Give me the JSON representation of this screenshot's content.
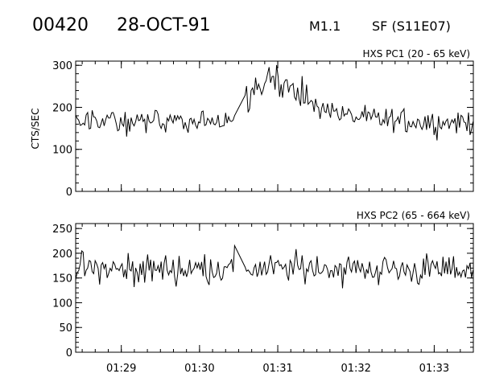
{
  "header": {
    "id": "00420",
    "date": "28-OCT-91",
    "class": "M1.1",
    "location": "SF (S11E07)"
  },
  "chart_data": [
    {
      "type": "line",
      "title": "HXS PC1 (20 - 65 keV)",
      "ylabel": "CTS/SEC",
      "ylim": [
        0,
        310
      ],
      "yticks": [
        0,
        100,
        200,
        300
      ],
      "xlim": [
        "01:28:25",
        "01:33:30"
      ],
      "xticks": [
        "01:29",
        "01:30",
        "01:31",
        "01:32",
        "01:33"
      ],
      "data_gap": [
        "01:30:28",
        "01:30:34"
      ],
      "series": [
        {
          "x": [
            "01:28:25",
            "01:28:40",
            "01:29:00",
            "01:29:20",
            "01:29:40",
            "01:30:00",
            "01:30:20",
            "01:30:28",
            "01:30:34",
            "01:30:40",
            "01:30:50",
            "01:30:55",
            "01:31:00",
            "01:31:10",
            "01:31:20",
            "01:31:40",
            "01:32:00",
            "01:32:30",
            "01:33:00",
            "01:33:30"
          ],
          "values": [
            168,
            166,
            165,
            164,
            166,
            165,
            167,
            172,
            228,
            240,
            262,
            295,
            258,
            240,
            222,
            190,
            175,
            168,
            165,
            165
          ]
        }
      ]
    },
    {
      "type": "line",
      "title": "HXS PC2 (65 - 664 keV)",
      "ylim": [
        0,
        260
      ],
      "yticks": [
        0,
        50,
        100,
        150,
        200,
        250
      ],
      "xlim": [
        "01:28:25",
        "01:33:30"
      ],
      "xticks": [
        "01:29",
        "01:30",
        "01:31",
        "01:32",
        "01:33"
      ],
      "data_gap": [
        "01:30:28",
        "01:30:34"
      ],
      "series": [
        {
          "x": [
            "01:28:25",
            "01:28:40",
            "01:29:00",
            "01:29:30",
            "01:30:00",
            "01:30:28",
            "01:30:34",
            "01:31:00",
            "01:31:30",
            "01:32:00",
            "01:32:30",
            "01:33:00",
            "01:33:30"
          ],
          "values": [
            170,
            168,
            167,
            168,
            169,
            170,
            170,
            168,
            172,
            168,
            167,
            166,
            167
          ]
        }
      ]
    }
  ]
}
